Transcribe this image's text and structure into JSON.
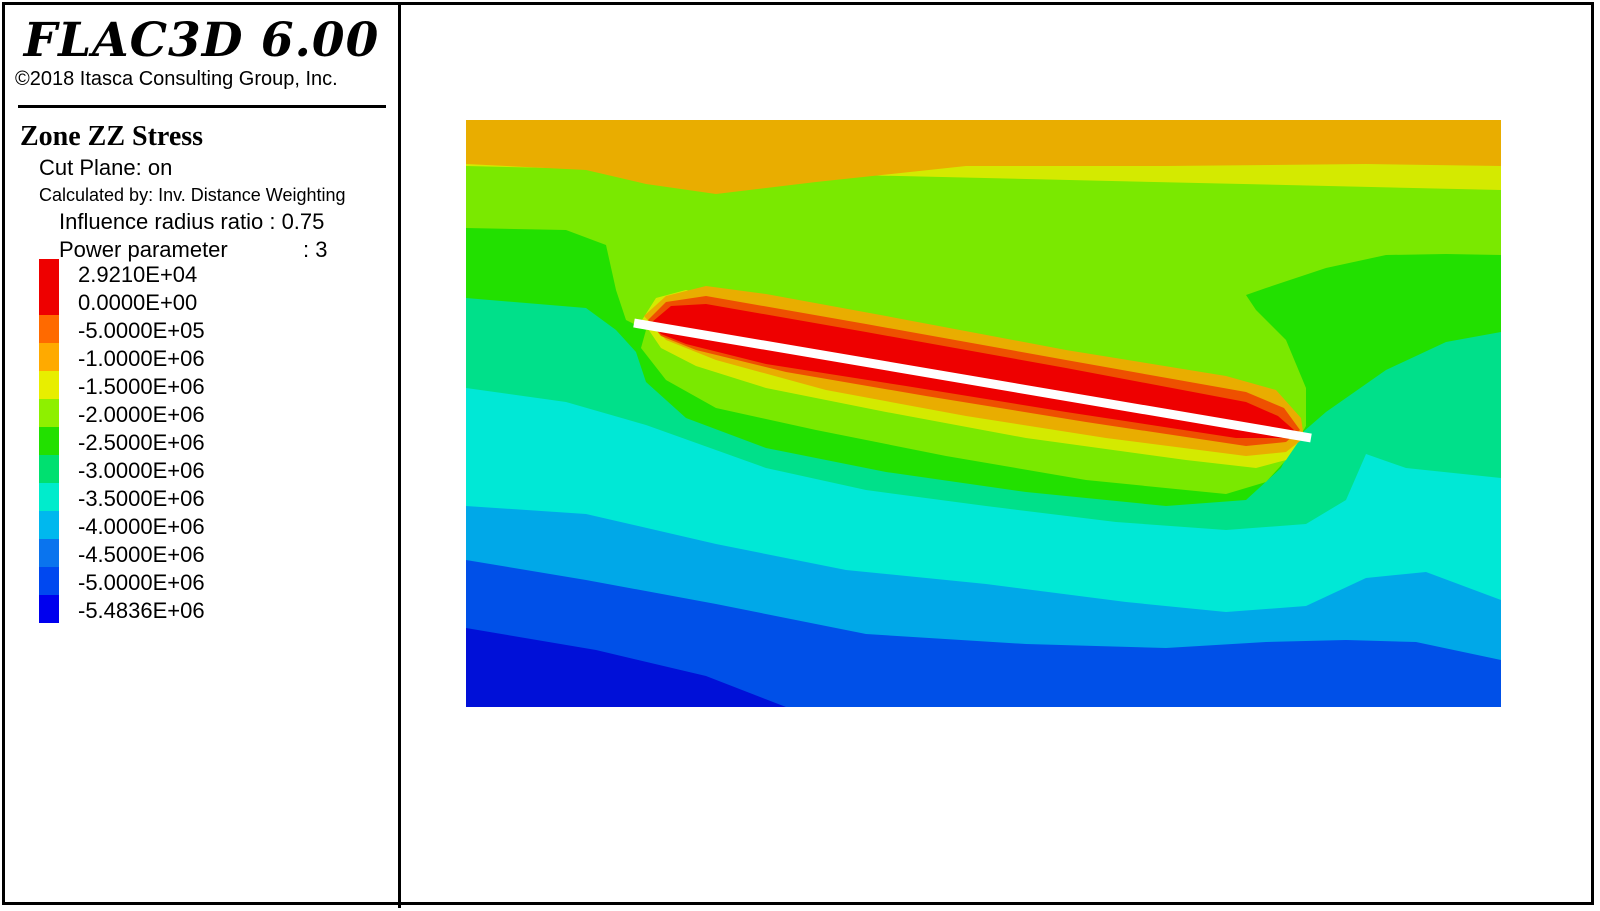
{
  "header": {
    "app_title": "FLAC3D 6.00",
    "copyright": "©2018 Itasca Consulting Group, Inc."
  },
  "legend": {
    "plot_title": "Zone ZZ Stress",
    "cut_plane": "Cut Plane: on",
    "calculated_by": "Calculated by: Inv. Distance Weighting",
    "influence_radius": "Influence radius ratio : 0.75",
    "power_parameter_label": "Power parameter",
    "power_parameter_value": ": 3",
    "levels": [
      "2.9210E+04",
      "0.0000E+00",
      "-5.0000E+05",
      "-1.0000E+06",
      "-1.5000E+06",
      "-2.0000E+06",
      "-2.5000E+06",
      "-3.0000E+06",
      "-3.5000E+06",
      "-4.0000E+06",
      "-4.5000E+06",
      "-5.0000E+06",
      "-5.4836E+06"
    ],
    "band_colors": [
      "#ee0000",
      "#ee0000",
      "#ff6a00",
      "#ffaa00",
      "#e8ee00",
      "#8ef000",
      "#22e000",
      "#00e070",
      "#00eccc",
      "#00b8ee",
      "#0a74ee",
      "#0048f0",
      "#0000ee"
    ]
  },
  "contour_colors": {
    "c_orange": "#e9ad00",
    "c_yellow": "#d4ea00",
    "c_lgreen": "#7ae900",
    "c_green": "#22e000",
    "c_sgreen": "#00e08a",
    "c_cyan": "#00e8d6",
    "c_sky": "#00a8e8",
    "c_blue": "#0050e8",
    "c_dblue": "#0010d8",
    "c_red": "#ee0000",
    "c_redorange": "#ee5000",
    "fracture": "#ffffff"
  }
}
